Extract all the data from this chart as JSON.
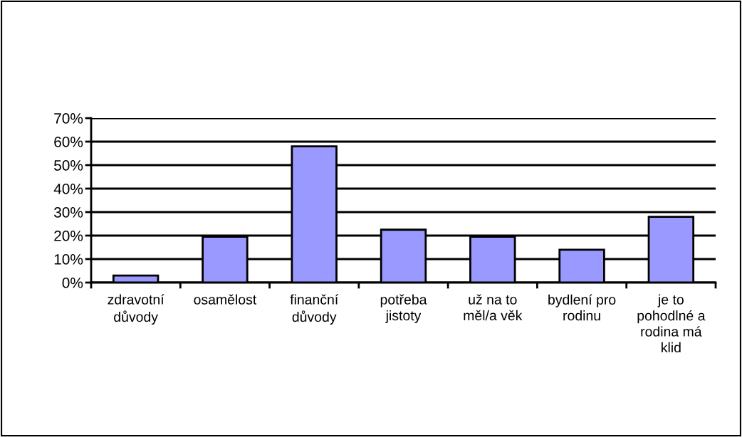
{
  "chart_data": {
    "type": "bar",
    "categories": [
      "zdravotní\ndůvody",
      "osamělost",
      "finanční\ndůvody",
      "potřeba\njistoty",
      "už na to\nměl/a věk",
      "bydlení pro\nrodinu",
      "je to\npohodlné a\nrodina má\nklid"
    ],
    "values": [
      3,
      19.5,
      58,
      22.5,
      19.5,
      14,
      28
    ],
    "color": "#9999ff",
    "ylim": [
      0,
      70
    ],
    "yticks": [
      {
        "value": 0,
        "label": "0%"
      },
      {
        "value": 10,
        "label": "10%"
      },
      {
        "value": 20,
        "label": "20%"
      },
      {
        "value": 30,
        "label": "30%"
      },
      {
        "value": 40,
        "label": "40%"
      },
      {
        "value": 50,
        "label": "50%"
      },
      {
        "value": 60,
        "label": "60%"
      },
      {
        "value": 70,
        "label": "70%"
      }
    ],
    "grid": "y",
    "legend": false
  }
}
